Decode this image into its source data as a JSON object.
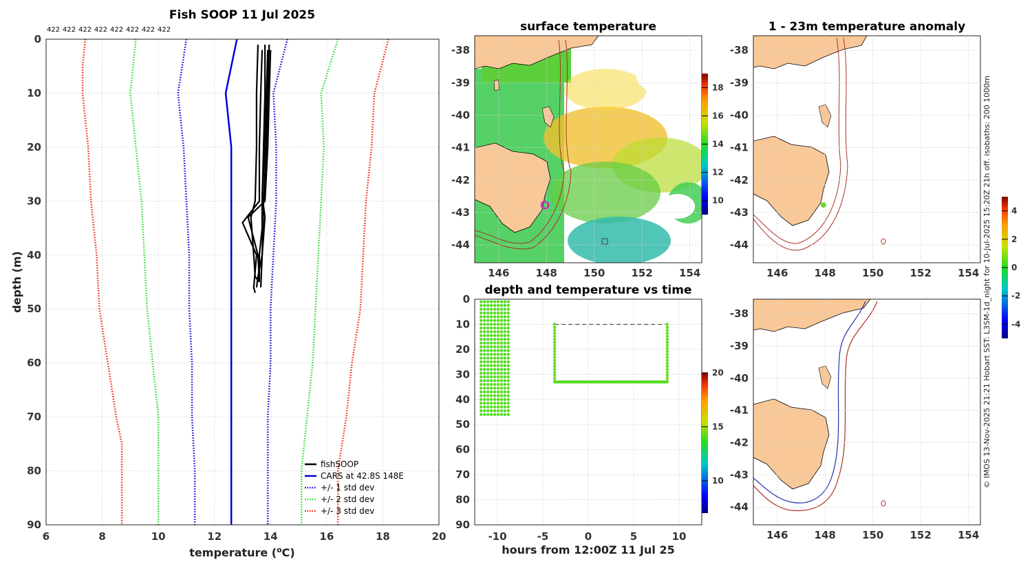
{
  "profile": {
    "title": "Fish SOOP 11 Jul 2025",
    "count_labels": [
      "422",
      "422",
      "422",
      "422",
      "422",
      "422",
      "422",
      "422"
    ],
    "xlabel_prefix": "temperature (",
    "xlabel_sup": "o",
    "xlabel_suffix": "C)",
    "ylabel": "depth (m)"
  },
  "sst": {
    "title": "surface temperature",
    "colorbar_ticks": [
      "10",
      "12",
      "14",
      "16",
      "18"
    ]
  },
  "anom": {
    "title": "1 - 23m temperature anomaly",
    "colorbar_ticks": [
      "-4",
      "-2",
      "0",
      "2",
      "4"
    ]
  },
  "timeseries": {
    "title": "depth and temperature vs time",
    "xlabel": "hours from 12:00Z 11 Jul 25",
    "colorbar_ticks": [
      "10",
      "15",
      "20"
    ]
  },
  "side_note": "© IMOS 13-Nov-2025 21:21 Hobart SST: L3SM-1d_night for 10-Jul-2025 15:20Z 21h off. isobaths: 200  1000m",
  "map_axes": {
    "lon_ticks": [
      "146",
      "148",
      "150",
      "152",
      "154"
    ],
    "lat_ticks": [
      "-38",
      "-39",
      "-40",
      "-41",
      "-42",
      "-43",
      "-44"
    ]
  },
  "chart_data": [
    {
      "type": "line",
      "name": "profile",
      "title": "Fish SOOP 11 Jul 2025",
      "xlabel": "temperature (oC)",
      "ylabel": "depth (m)",
      "xlim": [
        6,
        20
      ],
      "ylim": [
        90,
        0
      ],
      "x_ticks": [
        6,
        8,
        10,
        12,
        14,
        16,
        18,
        20
      ],
      "y_ticks": [
        0,
        10,
        20,
        30,
        40,
        50,
        60,
        70,
        80,
        90
      ],
      "legend": [
        "fishSOOP",
        "CARS at 42.8S 148E",
        "+/- 1 std dev",
        "+/- 2 std dev",
        "+/- 3 std dev"
      ],
      "series": [
        {
          "name": "CARS mean",
          "color": "#0000dd",
          "style": "solid",
          "depth": [
            0,
            10,
            20,
            30,
            40,
            50,
            60,
            70,
            80,
            90
          ],
          "temp": [
            12.8,
            12.4,
            12.6,
            12.6,
            12.6,
            12.6,
            12.6,
            12.6,
            12.6,
            12.6
          ]
        },
        {
          "name": "-1 std",
          "color": "#0000dd",
          "style": "dot",
          "depth": [
            0,
            10,
            20,
            30,
            40,
            50,
            60,
            70,
            80,
            90
          ],
          "temp": [
            11.0,
            10.7,
            10.9,
            11.0,
            11.1,
            11.1,
            11.2,
            11.2,
            11.3,
            11.3
          ]
        },
        {
          "name": "+1 std",
          "color": "#0000dd",
          "style": "dot",
          "depth": [
            0,
            10,
            20,
            30,
            40,
            50,
            60,
            70,
            80,
            90
          ],
          "temp": [
            14.6,
            14.1,
            14.2,
            14.2,
            14.1,
            14.0,
            14.0,
            13.9,
            13.9,
            13.9
          ]
        },
        {
          "name": "-2 std",
          "color": "#22dd22",
          "style": "dot",
          "depth": [
            0,
            10,
            20,
            30,
            40,
            50,
            60,
            70,
            80,
            90
          ],
          "temp": [
            9.2,
            9.0,
            9.2,
            9.4,
            9.5,
            9.6,
            9.8,
            10.0,
            10.0,
            10.0
          ]
        },
        {
          "name": "+2 std",
          "color": "#22dd22",
          "style": "dot",
          "depth": [
            0,
            10,
            20,
            30,
            40,
            50,
            60,
            70,
            80,
            90
          ],
          "temp": [
            16.4,
            15.8,
            15.9,
            15.8,
            15.7,
            15.6,
            15.5,
            15.3,
            15.1,
            15.1
          ]
        },
        {
          "name": "-3 std",
          "color": "#ee2200",
          "style": "dot",
          "depth": [
            0,
            5,
            10,
            20,
            30,
            40,
            50,
            60,
            70,
            75,
            80,
            90
          ],
          "temp": [
            7.4,
            7.3,
            7.3,
            7.5,
            7.6,
            7.8,
            7.9,
            8.2,
            8.5,
            8.7,
            8.7,
            8.7
          ]
        },
        {
          "name": "+3 std",
          "color": "#ee2200",
          "style": "dot",
          "depth": [
            0,
            10,
            20,
            30,
            40,
            50,
            60,
            70,
            80,
            90
          ],
          "temp": [
            18.2,
            17.7,
            17.6,
            17.4,
            17.3,
            17.2,
            16.9,
            16.7,
            16.4,
            16.4
          ]
        }
      ],
      "fishsoop_casts": [
        {
          "depth": [
            1,
            10,
            20,
            30,
            33,
            40,
            44,
            45
          ],
          "temp": [
            13.55,
            13.5,
            13.5,
            13.45,
            13.3,
            13.4,
            13.45,
            13.6
          ]
        },
        {
          "depth": [
            2,
            10,
            20,
            30,
            34,
            40,
            46,
            47
          ],
          "temp": [
            13.7,
            13.65,
            13.6,
            13.6,
            13.0,
            13.5,
            13.4,
            13.45
          ]
        },
        {
          "depth": [
            1,
            10,
            20,
            30,
            35,
            40,
            45
          ],
          "temp": [
            13.8,
            13.8,
            13.75,
            13.7,
            13.7,
            13.6,
            13.6
          ]
        },
        {
          "depth": [
            2,
            10,
            20,
            29,
            33,
            40,
            44,
            46
          ],
          "temp": [
            13.9,
            13.85,
            13.8,
            13.7,
            13.8,
            13.7,
            13.55,
            13.5
          ]
        },
        {
          "depth": [
            1,
            10,
            20,
            30,
            40,
            46
          ],
          "temp": [
            13.95,
            13.9,
            13.85,
            13.75,
            13.7,
            13.65
          ]
        },
        {
          "depth": [
            2,
            10,
            20,
            30,
            33,
            40,
            45
          ],
          "temp": [
            14.0,
            13.95,
            13.9,
            13.8,
            13.2,
            13.55,
            13.6
          ]
        }
      ]
    },
    {
      "type": "scatter",
      "name": "depth and temperature vs time",
      "xlabel": "hours from 12:00Z 11 Jul 25",
      "ylabel": "",
      "xlim": [
        -12.5,
        12.5
      ],
      "ylim": [
        90,
        0
      ],
      "x_ticks": [
        -10,
        -5,
        0,
        5,
        10
      ],
      "y_ticks": [
        0,
        10,
        20,
        30,
        40,
        50,
        60,
        70,
        80,
        90
      ],
      "colorbar": {
        "min": 7,
        "max": 20,
        "ticks": [
          10,
          15,
          20
        ]
      },
      "bursts": [
        {
          "x_start": -11.8,
          "x_end": -8.8,
          "columns": 9,
          "depth_top": 1,
          "depth_bottom": 46,
          "temp": 13.6
        },
        {
          "x_start": -3.7,
          "x_end": 8.7,
          "depth_top": 10,
          "depth_bottom": 33,
          "temp": 13.3
        }
      ]
    }
  ]
}
